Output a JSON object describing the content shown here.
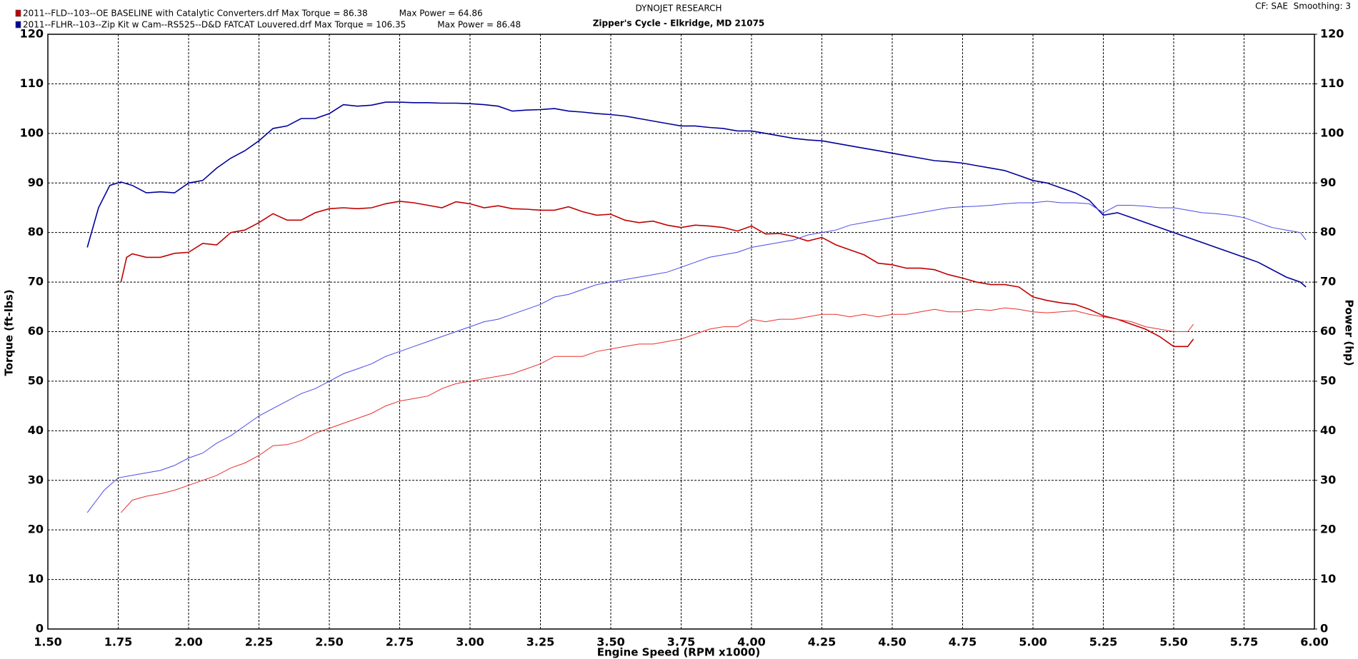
{
  "chart_data": {
    "type": "line",
    "title": "DYNOJET RESEARCH",
    "subtitle": "Zipper's Cycle - Elkridge, MD 21075",
    "settings_note": "CF: SAE  Smoothing: 3",
    "x_label": "Engine Speed (RPM x1000)",
    "y_label": "Torque (ft-lbs)",
    "y2_label": "Power (hp)",
    "xlim": [
      1.5,
      6.0
    ],
    "xticks": [
      {
        "value": 1.5,
        "label": "1.50"
      },
      {
        "value": 1.75,
        "label": "1.75"
      },
      {
        "value": 2.0,
        "label": "2.00"
      },
      {
        "value": 2.25,
        "label": "2.25"
      },
      {
        "value": 2.5,
        "label": "2.50"
      },
      {
        "value": 2.75,
        "label": "2.75"
      },
      {
        "value": 3.0,
        "label": "3.00"
      },
      {
        "value": 3.25,
        "label": "3.25"
      },
      {
        "value": 3.5,
        "label": "3.50"
      },
      {
        "value": 3.75,
        "label": "3.75"
      },
      {
        "value": 4.0,
        "label": "4.00"
      },
      {
        "value": 4.25,
        "label": "4.25"
      },
      {
        "value": 4.5,
        "label": "4.50"
      },
      {
        "value": 4.75,
        "label": "4.75"
      },
      {
        "value": 5.0,
        "label": "5.00"
      },
      {
        "value": 5.25,
        "label": "5.25"
      },
      {
        "value": 5.5,
        "label": "5.50"
      },
      {
        "value": 5.75,
        "label": "5.75"
      },
      {
        "value": 6.0,
        "label": "6.00"
      }
    ],
    "ylim": [
      0,
      120
    ],
    "yticks": [
      0,
      10,
      20,
      30,
      40,
      50,
      60,
      70,
      80,
      90,
      100,
      110,
      120
    ],
    "y2lim": [
      0,
      120
    ],
    "y2ticks": [
      0,
      10,
      20,
      30,
      40,
      50,
      60,
      70,
      80,
      90,
      100,
      110,
      120
    ],
    "grid": true,
    "series": [
      {
        "name": "2011--FLD--103--OE BASELINE with Catalytic Converters.drf Max Torque = 86.38",
        "color": "#c00000",
        "x": [
          1.76,
          1.78,
          1.8,
          1.85,
          1.9,
          1.95,
          2.0,
          2.05,
          2.1,
          2.15,
          2.2,
          2.25,
          2.3,
          2.35,
          2.4,
          2.45,
          2.5,
          2.55,
          2.6,
          2.65,
          2.7,
          2.75,
          2.8,
          2.85,
          2.9,
          2.95,
          3.0,
          3.05,
          3.1,
          3.15,
          3.2,
          3.25,
          3.3,
          3.35,
          3.4,
          3.45,
          3.5,
          3.55,
          3.6,
          3.65,
          3.7,
          3.75,
          3.8,
          3.85,
          3.9,
          3.95,
          4.0,
          4.05,
          4.1,
          4.15,
          4.2,
          4.25,
          4.3,
          4.35,
          4.4,
          4.45,
          4.5,
          4.55,
          4.6,
          4.65,
          4.7,
          4.75,
          4.8,
          4.85,
          4.9,
          4.95,
          5.0,
          5.05,
          5.1,
          5.15,
          5.2,
          5.25,
          5.3,
          5.35,
          5.4,
          5.45,
          5.5,
          5.55,
          5.57
        ],
        "values": [
          70,
          75,
          75.7,
          75,
          75,
          75.8,
          76,
          77.8,
          77.5,
          80,
          80.5,
          82,
          83.8,
          82.5,
          82.5,
          84,
          84.8,
          85,
          84.8,
          85,
          85.8,
          86.3,
          86,
          85.5,
          85,
          86.2,
          85.8,
          85,
          85.4,
          84.8,
          84.7,
          84.5,
          84.5,
          85.2,
          84.2,
          83.5,
          83.7,
          82.5,
          82,
          82.3,
          81.5,
          81,
          81.5,
          81.3,
          81,
          80.3,
          81.3,
          79.7,
          79.8,
          79.2,
          78.3,
          79,
          77.5,
          76.5,
          75.5,
          73.8,
          73.5,
          72.8,
          72.8,
          72.5,
          71.5,
          70.8,
          70,
          69.5,
          69.5,
          69,
          67,
          66.3,
          65.8,
          65.5,
          64.5,
          63.2,
          62.5,
          61.5,
          60.5,
          59,
          57,
          57,
          58.5
        ]
      },
      {
        "name": "Max Power = 64.86",
        "color": "#e8302c",
        "axis": "y2",
        "x": [
          1.76,
          1.8,
          1.85,
          1.9,
          1.95,
          2.0,
          2.05,
          2.1,
          2.15,
          2.2,
          2.25,
          2.3,
          2.35,
          2.4,
          2.45,
          2.5,
          2.55,
          2.6,
          2.65,
          2.7,
          2.75,
          2.8,
          2.85,
          2.9,
          2.95,
          3.0,
          3.05,
          3.1,
          3.15,
          3.2,
          3.25,
          3.3,
          3.35,
          3.4,
          3.45,
          3.5,
          3.55,
          3.6,
          3.65,
          3.7,
          3.75,
          3.8,
          3.85,
          3.9,
          3.95,
          4.0,
          4.05,
          4.1,
          4.15,
          4.2,
          4.25,
          4.3,
          4.35,
          4.4,
          4.45,
          4.5,
          4.55,
          4.6,
          4.65,
          4.7,
          4.75,
          4.8,
          4.85,
          4.9,
          4.95,
          5.0,
          5.05,
          5.1,
          5.15,
          5.2,
          5.25,
          5.3,
          5.35,
          5.4,
          5.45,
          5.5,
          5.55,
          5.57
        ],
        "values": [
          23.5,
          26,
          26.8,
          27.3,
          28,
          29,
          30,
          31,
          32.5,
          33.5,
          35,
          37,
          37.2,
          38,
          39.5,
          40.5,
          41.5,
          42.5,
          43.5,
          45,
          46,
          46.5,
          47,
          48.5,
          49.5,
          50,
          50.5,
          51,
          51.5,
          52.5,
          53.5,
          55,
          55,
          55,
          56,
          56.5,
          57,
          57.5,
          57.5,
          58,
          58.5,
          59.5,
          60.5,
          61,
          61,
          62.5,
          62,
          62.5,
          62.5,
          63,
          63.5,
          63.5,
          63,
          63.5,
          63,
          63.5,
          63.5,
          64,
          64.5,
          64,
          64,
          64.5,
          64.3,
          64.8,
          64.5,
          64,
          63.8,
          64,
          64.2,
          63.5,
          63,
          62.5,
          62,
          61,
          60.5,
          60,
          60,
          61.5
        ]
      },
      {
        "name": "2011--FLHR--103--Zip Kit w Cam--RS525--D&D FATCAT Louvered.drf Max Torque = 106.35",
        "color": "#00009c",
        "x": [
          1.64,
          1.68,
          1.72,
          1.76,
          1.8,
          1.85,
          1.9,
          1.95,
          2.0,
          2.05,
          2.1,
          2.15,
          2.2,
          2.25,
          2.3,
          2.35,
          2.4,
          2.45,
          2.5,
          2.55,
          2.6,
          2.65,
          2.7,
          2.75,
          2.8,
          2.85,
          2.9,
          2.95,
          3.0,
          3.05,
          3.1,
          3.15,
          3.2,
          3.25,
          3.3,
          3.35,
          3.4,
          3.45,
          3.5,
          3.55,
          3.6,
          3.65,
          3.7,
          3.75,
          3.8,
          3.85,
          3.9,
          3.95,
          4.0,
          4.05,
          4.1,
          4.15,
          4.2,
          4.25,
          4.3,
          4.35,
          4.4,
          4.45,
          4.5,
          4.55,
          4.6,
          4.65,
          4.7,
          4.75,
          4.8,
          4.85,
          4.9,
          4.95,
          5.0,
          5.05,
          5.1,
          5.15,
          5.2,
          5.25,
          5.3,
          5.35,
          5.4,
          5.45,
          5.5,
          5.55,
          5.6,
          5.65,
          5.7,
          5.75,
          5.8,
          5.85,
          5.9,
          5.95,
          5.97
        ],
        "values": [
          77,
          85,
          89.5,
          90.2,
          89.5,
          88,
          88.2,
          88,
          90,
          90.5,
          93,
          95,
          96.5,
          98.5,
          101,
          101.5,
          103,
          103,
          104,
          105.8,
          105.5,
          105.7,
          106.3,
          106.3,
          106.2,
          106.2,
          106.1,
          106.1,
          106,
          105.8,
          105.5,
          104.5,
          104.7,
          104.8,
          105,
          104.5,
          104.3,
          104,
          103.8,
          103.5,
          103,
          102.5,
          102,
          101.5,
          101.5,
          101.2,
          101,
          100.5,
          100.5,
          100,
          99.5,
          99,
          98.7,
          98.5,
          98,
          97.5,
          97,
          96.5,
          96,
          95.5,
          95,
          94.5,
          94.3,
          94,
          93.5,
          93,
          92.5,
          91.5,
          90.5,
          90,
          89,
          88,
          86.5,
          83.5,
          84,
          83,
          82,
          81,
          80,
          79,
          78,
          77,
          76,
          75,
          74,
          72.5,
          71,
          70,
          69
        ]
      },
      {
        "name": "Max Power = 86.48",
        "color": "#4a4ae6",
        "axis": "y2",
        "x": [
          1.64,
          1.7,
          1.75,
          1.8,
          1.85,
          1.9,
          1.95,
          2.0,
          2.05,
          2.1,
          2.15,
          2.2,
          2.25,
          2.3,
          2.35,
          2.4,
          2.45,
          2.5,
          2.55,
          2.6,
          2.65,
          2.7,
          2.75,
          2.8,
          2.85,
          2.9,
          2.95,
          3.0,
          3.05,
          3.1,
          3.15,
          3.2,
          3.25,
          3.3,
          3.35,
          3.4,
          3.45,
          3.5,
          3.55,
          3.6,
          3.65,
          3.7,
          3.75,
          3.8,
          3.85,
          3.9,
          3.95,
          4.0,
          4.05,
          4.1,
          4.15,
          4.2,
          4.25,
          4.3,
          4.35,
          4.4,
          4.45,
          4.5,
          4.55,
          4.6,
          4.65,
          4.7,
          4.75,
          4.8,
          4.85,
          4.9,
          4.95,
          5.0,
          5.05,
          5.1,
          5.15,
          5.2,
          5.25,
          5.3,
          5.35,
          5.4,
          5.45,
          5.5,
          5.55,
          5.6,
          5.65,
          5.7,
          5.75,
          5.8,
          5.85,
          5.9,
          5.95,
          5.97
        ],
        "values": [
          23.5,
          28,
          30.5,
          31,
          31.5,
          32,
          33,
          34.5,
          35.5,
          37.5,
          39,
          41,
          43,
          44.5,
          46,
          47.5,
          48.5,
          50,
          51.5,
          52.5,
          53.5,
          55,
          56,
          57,
          58,
          59,
          60,
          61,
          62,
          62.5,
          63.5,
          64.5,
          65.5,
          67,
          67.5,
          68.5,
          69.5,
          70,
          70.5,
          71,
          71.5,
          72,
          73,
          74,
          75,
          75.5,
          76,
          77,
          77.5,
          78,
          78.5,
          79.5,
          80,
          80.5,
          81.5,
          82,
          82.5,
          83,
          83.5,
          84,
          84.5,
          85,
          85.2,
          85.3,
          85.5,
          85.8,
          86,
          86,
          86.3,
          86,
          86,
          85.8,
          84,
          85.5,
          85.5,
          85.3,
          85,
          85,
          84.5,
          84,
          83.8,
          83.5,
          83,
          82,
          81,
          80.5,
          80,
          78.5
        ]
      }
    ]
  }
}
